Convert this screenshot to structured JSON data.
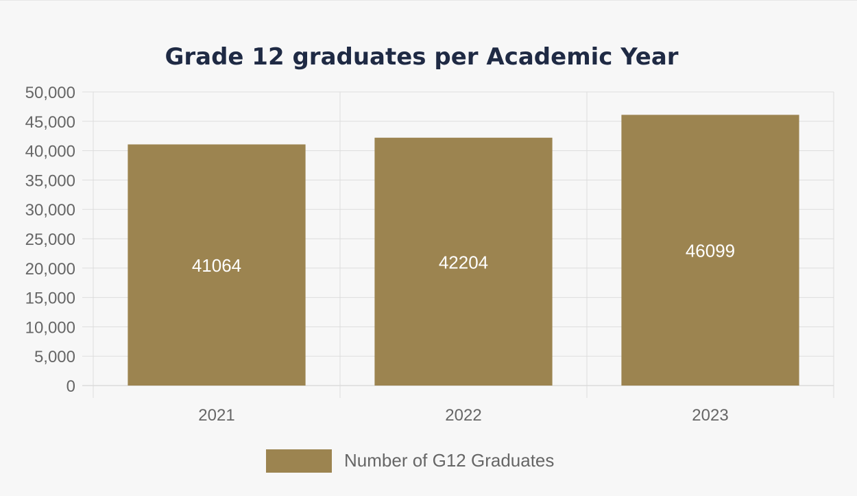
{
  "chart_data": {
    "type": "bar",
    "title": "Grade 12 graduates per Academic Year",
    "categories": [
      "2021",
      "2022",
      "2023"
    ],
    "series": [
      {
        "name": "Number of G12 Graduates",
        "values": [
          41064,
          42204,
          46099
        ],
        "color": "#9c8450"
      }
    ],
    "data_labels": [
      "41064",
      "42204",
      "46099"
    ],
    "ylim": [
      0,
      50000
    ],
    "yticks": [
      0,
      5000,
      10000,
      15000,
      20000,
      25000,
      30000,
      35000,
      40000,
      45000,
      50000
    ],
    "ytick_labels": [
      "0",
      "5,000",
      "10,000",
      "15,000",
      "20,000",
      "25,000",
      "30,000",
      "35,000",
      "40,000",
      "45,000",
      "50,000"
    ],
    "grid": true,
    "legend_position": "bottom",
    "colors": {
      "title": "#1f2a44",
      "grid": "#dddddd",
      "axis_text": "#666666",
      "bar_label": "#ffffff",
      "background": "#f7f7f7"
    }
  }
}
